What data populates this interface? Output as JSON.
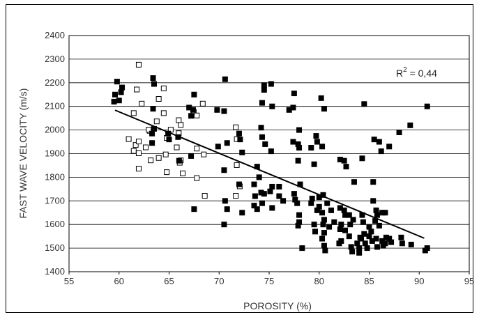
{
  "chart_data": {
    "type": "scatter",
    "xlabel": "POROSITY (%)",
    "ylabel": "FAST WAVE VELOCITY (m/s)",
    "xlim": [
      55,
      95
    ],
    "ylim": [
      1400,
      2400
    ],
    "xticks": [
      55,
      60,
      65,
      70,
      75,
      80,
      85,
      90,
      95
    ],
    "yticks": [
      1400,
      1500,
      1600,
      1700,
      1800,
      1900,
      2000,
      2100,
      2200,
      2300,
      2400
    ],
    "grid": true,
    "annotation": {
      "prefix": "R",
      "superscript": "2",
      "text": " = 0,44"
    },
    "series": [
      {
        "marker": "square-open",
        "points": [
          [
            62.0,
            2275
          ],
          [
            61.8,
            2170
          ],
          [
            62.3,
            2110
          ],
          [
            64.0,
            2130
          ],
          [
            64.5,
            2175
          ],
          [
            64.5,
            2070
          ],
          [
            65.2,
            2000
          ],
          [
            66.0,
            2040
          ],
          [
            66.2,
            2020
          ],
          [
            66.0,
            1985
          ],
          [
            64.8,
            1965
          ],
          [
            63.1,
            1995
          ],
          [
            61.5,
            2070
          ],
          [
            61.0,
            1960
          ],
          [
            61.7,
            1935
          ],
          [
            62.0,
            1900
          ],
          [
            62.7,
            1925
          ],
          [
            61.5,
            1910
          ],
          [
            62.0,
            1835
          ],
          [
            63.2,
            1870
          ],
          [
            63.0,
            2000
          ],
          [
            64.7,
            1895
          ],
          [
            64.8,
            1820
          ],
          [
            66.2,
            1870
          ],
          [
            66.4,
            1815
          ],
          [
            67.5,
            2075
          ],
          [
            67.8,
            2060
          ],
          [
            68.4,
            2110
          ],
          [
            67.8,
            1920
          ],
          [
            68.5,
            1895
          ],
          [
            67.8,
            1795
          ],
          [
            68.6,
            1720
          ],
          [
            71.7,
            2010
          ],
          [
            71.8,
            1960
          ],
          [
            71.8,
            1850
          ],
          [
            71.7,
            1720
          ],
          [
            72.1,
            1760
          ],
          [
            62.0,
            1950
          ],
          [
            66.1,
            1860
          ],
          [
            64.0,
            1880
          ],
          [
            65.8,
            1925
          ],
          [
            63.8,
            2035
          ]
        ]
      },
      {
        "marker": "square-filled",
        "points": [
          [
            59.8,
            2205
          ],
          [
            59.6,
            2150
          ],
          [
            59.5,
            2120
          ],
          [
            60.3,
            2180
          ],
          [
            60.2,
            2160
          ],
          [
            60.0,
            2125
          ],
          [
            63.4,
            2220
          ],
          [
            63.5,
            2195
          ],
          [
            63.4,
            2090
          ],
          [
            63.5,
            2005
          ],
          [
            63.3,
            1985
          ],
          [
            63.3,
            1945
          ],
          [
            64.9,
            1985
          ],
          [
            65.0,
            1960
          ],
          [
            65.9,
            1970
          ],
          [
            66.0,
            1870
          ],
          [
            67.0,
            2095
          ],
          [
            67.5,
            2150
          ],
          [
            67.4,
            2085
          ],
          [
            67.2,
            2060
          ],
          [
            67.2,
            1890
          ],
          [
            67.5,
            1665
          ],
          [
            69.8,
            2085
          ],
          [
            70.5,
            2080
          ],
          [
            70.6,
            2215
          ],
          [
            69.9,
            1930
          ],
          [
            70.8,
            1945
          ],
          [
            70.5,
            1830
          ],
          [
            70.6,
            1700
          ],
          [
            70.5,
            1600
          ],
          [
            70.8,
            1665
          ],
          [
            72.0,
            1985
          ],
          [
            72.1,
            1960
          ],
          [
            72.3,
            1905
          ],
          [
            72.0,
            1770
          ],
          [
            72.3,
            1650
          ],
          [
            73.8,
            1845
          ],
          [
            73.5,
            1770
          ],
          [
            73.6,
            1720
          ],
          [
            73.5,
            1680
          ],
          [
            73.8,
            1665
          ],
          [
            74.0,
            1800
          ],
          [
            74.2,
            2010
          ],
          [
            74.5,
            2190
          ],
          [
            74.5,
            2170
          ],
          [
            74.3,
            2115
          ],
          [
            74.3,
            1970
          ],
          [
            74.6,
            1940
          ],
          [
            74.5,
            1730
          ],
          [
            74.3,
            1690
          ],
          [
            74.2,
            1735
          ],
          [
            75.2,
            2195
          ],
          [
            75.3,
            2100
          ],
          [
            75.2,
            1910
          ],
          [
            75.3,
            1760
          ],
          [
            75.1,
            1740
          ],
          [
            75.3,
            1670
          ],
          [
            76.0,
            1760
          ],
          [
            76.0,
            1720
          ],
          [
            76.4,
            1700
          ],
          [
            77.0,
            2085
          ],
          [
            77.5,
            2155
          ],
          [
            77.4,
            2095
          ],
          [
            77.4,
            1950
          ],
          [
            78.0,
            2000
          ],
          [
            77.9,
            1940
          ],
          [
            78.0,
            1925
          ],
          [
            77.9,
            1870
          ],
          [
            78.1,
            1770
          ],
          [
            77.5,
            1730
          ],
          [
            77.6,
            1705
          ],
          [
            77.8,
            1690
          ],
          [
            78.0,
            1640
          ],
          [
            78.0,
            1610
          ],
          [
            77.9,
            1595
          ],
          [
            78.3,
            1500
          ],
          [
            79.2,
            1925
          ],
          [
            79.5,
            1855
          ],
          [
            79.3,
            1710
          ],
          [
            79.2,
            1690
          ],
          [
            79.7,
            1975
          ],
          [
            79.8,
            1950
          ],
          [
            80.0,
            1715
          ],
          [
            80.0,
            1675
          ],
          [
            79.8,
            1660
          ],
          [
            79.5,
            1600
          ],
          [
            79.6,
            1570
          ],
          [
            80.2,
            2135
          ],
          [
            80.5,
            2090
          ],
          [
            80.3,
            1930
          ],
          [
            80.4,
            1725
          ],
          [
            80.3,
            1650
          ],
          [
            80.5,
            1620
          ],
          [
            80.4,
            1600
          ],
          [
            80.5,
            1565
          ],
          [
            80.3,
            1540
          ],
          [
            80.5,
            1510
          ],
          [
            80.6,
            1490
          ],
          [
            80.8,
            1690
          ],
          [
            81.0,
            1590
          ],
          [
            82.1,
            1875
          ],
          [
            82.1,
            1670
          ],
          [
            82.2,
            1600
          ],
          [
            82.1,
            1580
          ],
          [
            82.2,
            1530
          ],
          [
            82.0,
            1520
          ],
          [
            82.5,
            1870
          ],
          [
            82.5,
            1660
          ],
          [
            82.6,
            1640
          ],
          [
            82.6,
            1575
          ],
          [
            82.7,
            1845
          ],
          [
            83.0,
            1640
          ],
          [
            83.1,
            1600
          ],
          [
            83.0,
            1550
          ],
          [
            83.2,
            1505
          ],
          [
            83.3,
            1485
          ],
          [
            83.5,
            1780
          ],
          [
            83.4,
            1620
          ],
          [
            84.0,
            1500
          ],
          [
            84.0,
            1480
          ],
          [
            84.3,
            1880
          ],
          [
            84.5,
            2110
          ],
          [
            84.3,
            1640
          ],
          [
            84.4,
            1610
          ],
          [
            84.5,
            1560
          ],
          [
            84.2,
            1540
          ],
          [
            84.6,
            1520
          ],
          [
            84.8,
            1500
          ],
          [
            85.0,
            1590
          ],
          [
            85.2,
            1570
          ],
          [
            85.0,
            1550
          ],
          [
            85.3,
            1530
          ],
          [
            85.4,
            1780
          ],
          [
            85.5,
            1960
          ],
          [
            85.4,
            1700
          ],
          [
            85.8,
            1640
          ],
          [
            85.6,
            1615
          ],
          [
            85.7,
            1540
          ],
          [
            85.8,
            1505
          ],
          [
            86.0,
            1950
          ],
          [
            86.2,
            1910
          ],
          [
            86.3,
            1650
          ],
          [
            86.0,
            1595
          ],
          [
            86.3,
            1530
          ],
          [
            86.4,
            1510
          ],
          [
            86.7,
            1545
          ],
          [
            86.6,
            1520
          ],
          [
            87.0,
            1930
          ],
          [
            87.0,
            1540
          ],
          [
            87.2,
            1525
          ],
          [
            88.0,
            1990
          ],
          [
            88.2,
            1545
          ],
          [
            88.3,
            1520
          ],
          [
            89.1,
            2020
          ],
          [
            89.2,
            1515
          ],
          [
            90.8,
            2100
          ],
          [
            90.8,
            1500
          ],
          [
            90.6,
            1490
          ],
          [
            84.1,
            1545
          ],
          [
            83.8,
            1520
          ],
          [
            81.5,
            1610
          ],
          [
            81.2,
            1660
          ],
          [
            85.7,
            1660
          ],
          [
            86.6,
            1650
          ]
        ]
      }
    ],
    "trendline": {
      "x": [
        59.6,
        90.5
      ],
      "y": [
        2084,
        1542
      ]
    }
  }
}
